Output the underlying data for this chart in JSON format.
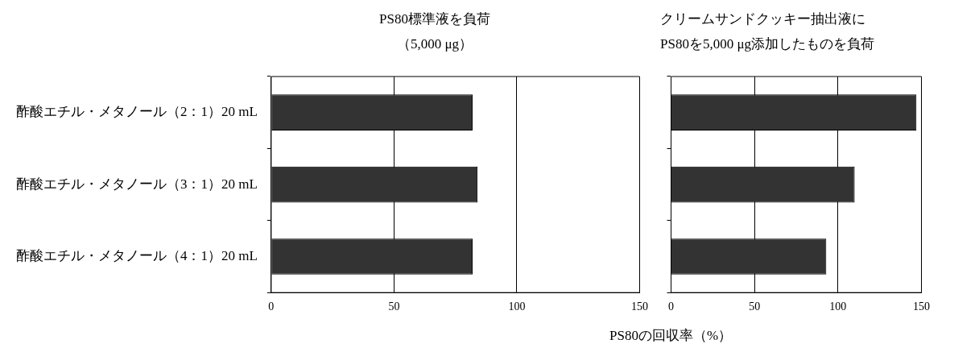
{
  "chart_data": [
    {
      "type": "bar",
      "orientation": "horizontal",
      "title": "PS80標準液を負荷（5,000 μg）",
      "xlabel": "PS80の回収率（%）",
      "categories": [
        "酢酸エチル・メタノール（2：1）20 mL",
        "酢酸エチル・メタノール（3：1）20 mL",
        "酢酸エチル・メタノール（4：1）20 mL"
      ],
      "values": [
        82,
        84,
        82
      ],
      "color": "#333333",
      "xlim": [
        0,
        150
      ],
      "xticks": [
        0,
        50,
        100,
        150
      ],
      "grid": "x",
      "legend": false
    },
    {
      "type": "bar",
      "orientation": "horizontal",
      "title": "クリームサンドクッキー抽出液にPS80を5,000 μg添加したものを負荷",
      "categories": [
        null,
        null,
        null
      ],
      "values": [
        147,
        110,
        93
      ],
      "color": "#333333",
      "xlim": [
        0,
        150
      ],
      "xticks": [
        0,
        50,
        100,
        150
      ],
      "grid": "x",
      "legend": false,
      "tick_labels": "x"
    }
  ]
}
